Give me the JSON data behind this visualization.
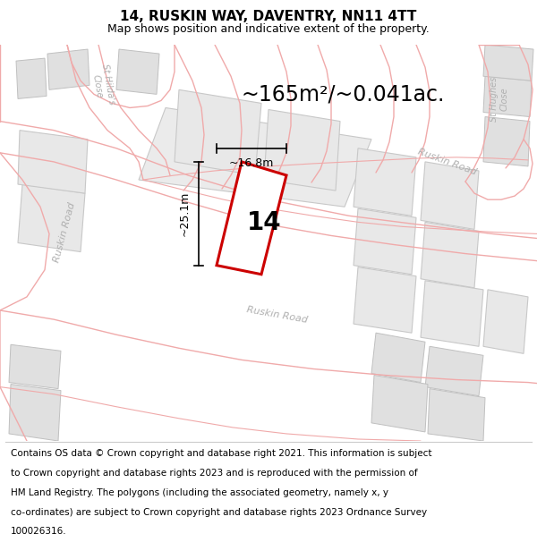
{
  "title": "14, RUSKIN WAY, DAVENTRY, NN11 4TT",
  "subtitle": "Map shows position and indicative extent of the property.",
  "area_text": "~165m²/~0.041ac.",
  "label_number": "14",
  "dim_width": "~16.8m",
  "dim_height": "~25.1m",
  "footer_lines": [
    "Contains OS data © Crown copyright and database right 2021. This information is subject",
    "to Crown copyright and database rights 2023 and is reproduced with the permission of",
    "HM Land Registry. The polygons (including the associated geometry, namely x, y",
    "co-ordinates) are subject to Crown copyright and database rights 2023 Ordnance Survey",
    "100026316."
  ],
  "map_bg": "#ffffff",
  "road_line_color": "#f0aaaa",
  "building_color": "#e0e0e0",
  "building_edge_color": "#c0c0c0",
  "plot_fill": "#ffffff",
  "plot_edge": "#cc0000",
  "road_label_color": "#b0b0b0",
  "dim_color": "#000000",
  "title_fontsize": 11,
  "subtitle_fontsize": 9,
  "area_fontsize": 17,
  "number_fontsize": 20,
  "dim_fontsize": 9,
  "footer_fontsize": 7.5,
  "road_label_fontsize": 8
}
